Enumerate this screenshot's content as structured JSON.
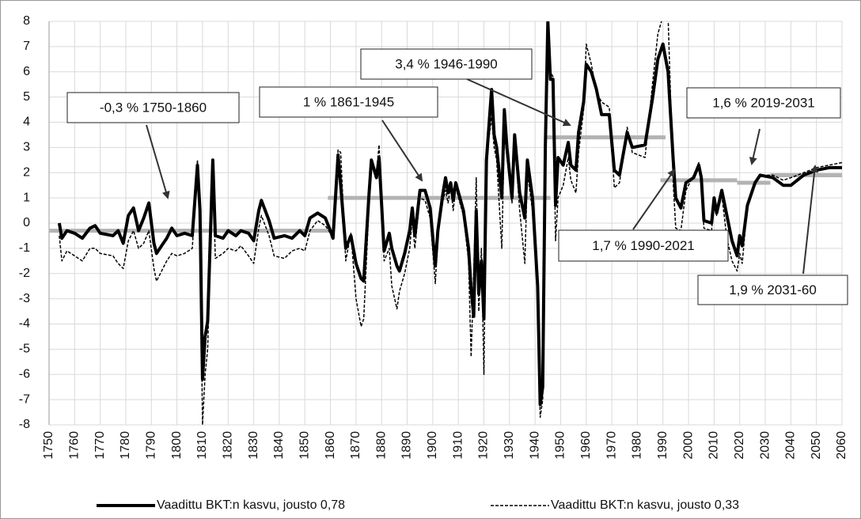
{
  "chart_data": {
    "type": "line",
    "x": [
      1754,
      1755,
      1757,
      1760,
      1763,
      1766,
      1768,
      1770,
      1775,
      1777,
      1779,
      1781,
      1783,
      1785,
      1787,
      1789,
      1791,
      1792,
      1794,
      1796,
      1798,
      1800,
      1803,
      1806,
      1808,
      1809,
      1810,
      1811,
      1812,
      1814,
      1815,
      1818,
      1820,
      1823,
      1825,
      1828,
      1830,
      1832,
      1833,
      1836,
      1838,
      1842,
      1845,
      1848,
      1850,
      1852,
      1855,
      1858,
      1860,
      1861,
      1863,
      1864,
      1866,
      1868,
      1870,
      1872,
      1873,
      1875,
      1876,
      1878,
      1879,
      1881,
      1883,
      1884,
      1886,
      1887,
      1889,
      1891,
      1892,
      1893,
      1895,
      1897,
      1899,
      1901,
      1902,
      1904,
      1905,
      1906,
      1907,
      1908,
      1909,
      1912,
      1914,
      1915,
      1916,
      1917,
      1918,
      1919,
      1920,
      1921,
      1923,
      1924,
      1925,
      1927,
      1928,
      1929,
      1931,
      1932,
      1934,
      1936,
      1937,
      1939,
      1941,
      1942,
      1943,
      1944,
      1945,
      1946,
      1947,
      1948,
      1949,
      1951,
      1953,
      1954,
      1956,
      1957,
      1959,
      1960,
      1962,
      1964,
      1966,
      1969,
      1971,
      1973,
      1976,
      1978,
      1983,
      1986,
      1988,
      1990,
      1992,
      1994,
      1995,
      1997,
      1999,
      2002,
      2004,
      2005,
      2006,
      2009,
      2010,
      2011,
      2013,
      2015,
      2017,
      2019,
      2020,
      2021,
      2023,
      2026,
      2028,
      2033,
      2037,
      2040,
      2045,
      2050,
      2055,
      2060
    ],
    "series": [
      {
        "name": "Vaadittu BKT:n kasvu, jousto 0,78",
        "color": "#000000",
        "dash": false,
        "values": [
          0,
          -0.6,
          -0.3,
          -0.4,
          -0.6,
          -0.2,
          -0.1,
          -0.4,
          -0.5,
          -0.3,
          -0.8,
          0.3,
          0.6,
          -0.3,
          0.2,
          0.8,
          -0.8,
          -1.2,
          -0.9,
          -0.6,
          -0.2,
          -0.5,
          -0.4,
          -0.5,
          2.3,
          0.5,
          -6.2,
          -4.5,
          -3.9,
          2.5,
          -0.5,
          -0.6,
          -0.3,
          -0.5,
          -0.3,
          -0.4,
          -0.7,
          0.5,
          0.9,
          0.1,
          -0.6,
          -0.5,
          -0.6,
          -0.3,
          -0.5,
          0.2,
          0.4,
          0.2,
          -0.3,
          -0.6,
          2.7,
          1.5,
          -1,
          -0.5,
          -1.6,
          -2.2,
          -2.3,
          1,
          2.5,
          1.8,
          2.6,
          -1.1,
          -0.4,
          -1,
          -1.7,
          -1.9,
          -1.2,
          -0.3,
          0.6,
          -0.5,
          1.3,
          1.3,
          0.6,
          -1.7,
          -0.3,
          1.2,
          1.8,
          1.2,
          1.6,
          0.9,
          1.6,
          0.5,
          -1,
          -2.6,
          -3.7,
          0.5,
          -2.8,
          -1.5,
          -3.8,
          2.5,
          5.3,
          3.5,
          3,
          1,
          4.5,
          3,
          1,
          3.5,
          1.2,
          0.2,
          2.5,
          1,
          -2.5,
          -7.2,
          -6.5,
          3,
          8,
          5.7,
          5.7,
          0.7,
          2.6,
          2.3,
          3.2,
          2.3,
          2.1,
          3.6,
          4.8,
          6.3,
          6,
          5.3,
          4.3,
          4.3,
          2.1,
          1.9,
          3.6,
          3,
          3.1,
          5,
          6.5,
          7.1,
          6,
          2.5,
          1,
          0.6,
          1.6,
          1.8,
          2.3,
          1.8,
          0.1,
          0,
          1,
          0.4,
          1.3,
          0.3,
          -0.7,
          -1.3,
          -0.5,
          -0.9,
          0.7,
          1.6,
          1.9,
          1.8,
          1.5,
          1.5,
          1.9,
          2.1,
          2.2,
          2.2
        ]
      },
      {
        "name": "Vaadittu BKT:n kasvu, jousto 0,33",
        "color": "#000000",
        "dash": true,
        "values": [
          -0.5,
          -1.5,
          -1.1,
          -1.3,
          -1.5,
          -1.0,
          -1.0,
          -1.2,
          -1.3,
          -1.6,
          -1.8,
          -0.7,
          -0.3,
          -1.0,
          -0.8,
          -0.3,
          -1.8,
          -2.3,
          -1.9,
          -1.5,
          -1.2,
          -1.3,
          -1.2,
          -1.0,
          2.5,
          0.2,
          -8,
          -6,
          -5,
          2.2,
          -1.4,
          -1.2,
          -1.0,
          -1.1,
          -0.9,
          -1.3,
          -1.6,
          -0.2,
          0.3,
          -0.5,
          -1.3,
          -1.4,
          -1.1,
          -1.0,
          -1.1,
          -0.3,
          0.1,
          -0.1,
          -0.4,
          -0.6,
          2.9,
          2.8,
          -1.5,
          -0.4,
          -3,
          -4.1,
          -3.8,
          0.5,
          2.3,
          2,
          3.1,
          -1.5,
          -1,
          -2.5,
          -3.4,
          -2.7,
          -2,
          -1,
          0.2,
          -1,
          1,
          0.9,
          0.2,
          -2.4,
          -0.5,
          0.9,
          1.3,
          0.8,
          1.5,
          0.5,
          1.4,
          0.3,
          -1.5,
          -5.3,
          -2,
          1.8,
          -3.5,
          -1,
          -6,
          2.6,
          4.2,
          3,
          2.5,
          -1,
          3.6,
          2.6,
          0.8,
          3.3,
          0.5,
          -1.6,
          2,
          0.5,
          -3,
          -7.7,
          -7,
          2.5,
          8.2,
          6,
          5.8,
          -0.7,
          1,
          1.5,
          2.6,
          1.7,
          1.2,
          2.8,
          4.5,
          7.1,
          6.3,
          5.2,
          4.8,
          4.6,
          1.4,
          1.6,
          3.8,
          2.8,
          2.6,
          5.6,
          7.5,
          8.2,
          8.2,
          1.6,
          -0.2,
          -0.3,
          1.3,
          1.9,
          2.4,
          1.5,
          -0.2,
          -0.3,
          0.9,
          0.3,
          1.1,
          -0.6,
          -1.5,
          -1.9,
          -1.2,
          -1.6,
          0.7,
          1.5,
          1.9,
          1.9,
          1.7,
          1.8,
          2,
          2.2,
          2.3,
          2.4
        ]
      }
    ],
    "averages": [
      {
        "text": "-0,3 % 1750-1860",
        "value": -0.3,
        "from": 1750,
        "to": 1860
      },
      {
        "text": "1 % 1861-1945",
        "value": 1,
        "from": 1859,
        "to": 1946
      },
      {
        "text": "3,4 % 1946-1990",
        "value": 3.4,
        "from": 1944,
        "to": 1991
      },
      {
        "text": "1,6 % 2019-2031",
        "value": 1.6,
        "from": 2019,
        "to": 2032
      },
      {
        "text": "1,7 % 1990-2021",
        "value": 1.7,
        "from": 1989,
        "to": 2019
      },
      {
        "text": "1,9 % 2031-60",
        "value": 1.9,
        "from": 2032,
        "to": 2060
      }
    ],
    "average_color": "#b3b3b3",
    "xlim": [
      1750,
      2060
    ],
    "xticks": [
      1750,
      1760,
      1770,
      1780,
      1790,
      1800,
      1810,
      1820,
      1830,
      1840,
      1850,
      1860,
      1870,
      1880,
      1890,
      1900,
      1910,
      1920,
      1930,
      1940,
      1950,
      1960,
      1970,
      1980,
      1990,
      2000,
      2010,
      2020,
      2030,
      2040,
      2050,
      2060
    ],
    "ylim": [
      -8,
      8
    ],
    "yticks": [
      -8,
      -7,
      -6,
      -5,
      -4,
      -3,
      -2,
      -1,
      0,
      1,
      2,
      3,
      4,
      5,
      6,
      7,
      8
    ],
    "grid": true
  }
}
